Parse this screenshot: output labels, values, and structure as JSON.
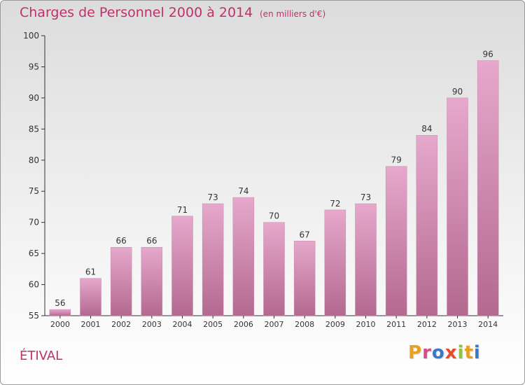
{
  "header": {
    "title": "Charges de Personnel 2000 à 2014",
    "subtitle": "(en milliers d'€)"
  },
  "footer": {
    "place": "ÉTIVAL",
    "brand": "Proxiti",
    "brand_colors": [
      "#e8a020",
      "#d94a8c",
      "#3a78c8",
      "#e84a2a",
      "#8cc43c",
      "#e8a020",
      "#3a78c8"
    ]
  },
  "colors": {
    "title": "#c0306a",
    "bar_top": "#e6a8cc",
    "bar_bottom": "#b4698f"
  },
  "chart_data": {
    "type": "bar",
    "categories": [
      "2000",
      "2001",
      "2002",
      "2003",
      "2004",
      "2005",
      "2006",
      "2007",
      "2008",
      "2009",
      "2010",
      "2011",
      "2012",
      "2013",
      "2014"
    ],
    "values": [
      56,
      61,
      66,
      66,
      71,
      73,
      74,
      70,
      67,
      72,
      73,
      79,
      84,
      90,
      96
    ],
    "ylim": [
      55,
      100
    ],
    "yticks": [
      55,
      60,
      65,
      70,
      75,
      80,
      85,
      90,
      95,
      100
    ],
    "grid": false,
    "title": "Charges de Personnel 2000 à 2014",
    "xlabel": "",
    "ylabel": ""
  }
}
